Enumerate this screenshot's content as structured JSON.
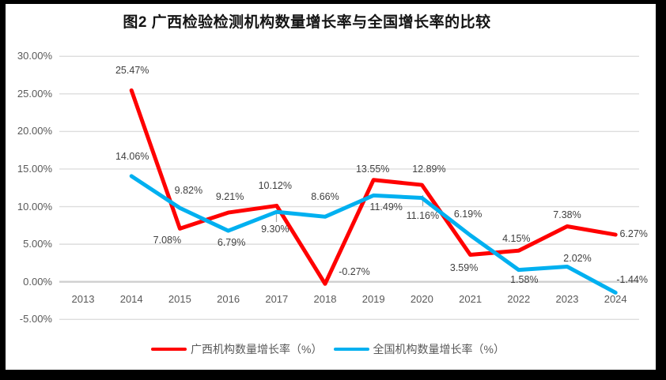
{
  "title": "图2 广西检验检测机构数量增长率与全国增长率的比较",
  "chart_data": {
    "type": "line",
    "title": "图2 广西检验检测机构数量增长率与全国增长率的比较",
    "categories": [
      "2013",
      "2014",
      "2015",
      "2016",
      "2017",
      "2018",
      "2019",
      "2020",
      "2021",
      "2022",
      "2023",
      "2024"
    ],
    "series": [
      {
        "id": "guangxi",
        "name": "广西机构数量增长率（%）",
        "color": "#FF0000",
        "values": [
          null,
          25.47,
          7.08,
          9.21,
          10.12,
          -0.27,
          13.55,
          12.89,
          3.59,
          4.15,
          7.38,
          6.27
        ],
        "labels": [
          null,
          "25.47%",
          "7.08%",
          "9.21%",
          "10.12%",
          "-0.27%",
          "13.55%",
          "12.89%",
          "3.59%",
          "4.15%",
          "7.38%",
          "6.27%"
        ]
      },
      {
        "id": "national",
        "name": "全国机构数量增长率（%）",
        "color": "#00B0F0",
        "values": [
          null,
          14.06,
          9.82,
          6.79,
          9.3,
          8.66,
          11.49,
          11.16,
          6.19,
          1.58,
          2.02,
          -1.44
        ],
        "labels": [
          null,
          "14.06%",
          "9.82%",
          "6.79%",
          "9.30%",
          "8.66%",
          "11.49%",
          "11.16%",
          "6.19%",
          "1.58%",
          "2.02%",
          "-1.44%"
        ]
      }
    ],
    "y_ticks": [
      {
        "label": "30.00%",
        "value": 30
      },
      {
        "label": "25.00%",
        "value": 25
      },
      {
        "label": "20.00%",
        "value": 20
      },
      {
        "label": "15.00%",
        "value": 15
      },
      {
        "label": "10.00%",
        "value": 10
      },
      {
        "label": "5.00%",
        "value": 5
      },
      {
        "label": "0.00%",
        "value": 0
      },
      {
        "label": "-5.00%",
        "value": -5
      }
    ],
    "ylim": [
      -5,
      30
    ],
    "grid": true,
    "legend_position": "bottom"
  },
  "colors": {
    "grid": "#DDDDDD",
    "axis": "#CFCFCF",
    "leader": "#A6A6A6",
    "tick_text": "#595959",
    "data_label_text": "#3F3F3F"
  }
}
